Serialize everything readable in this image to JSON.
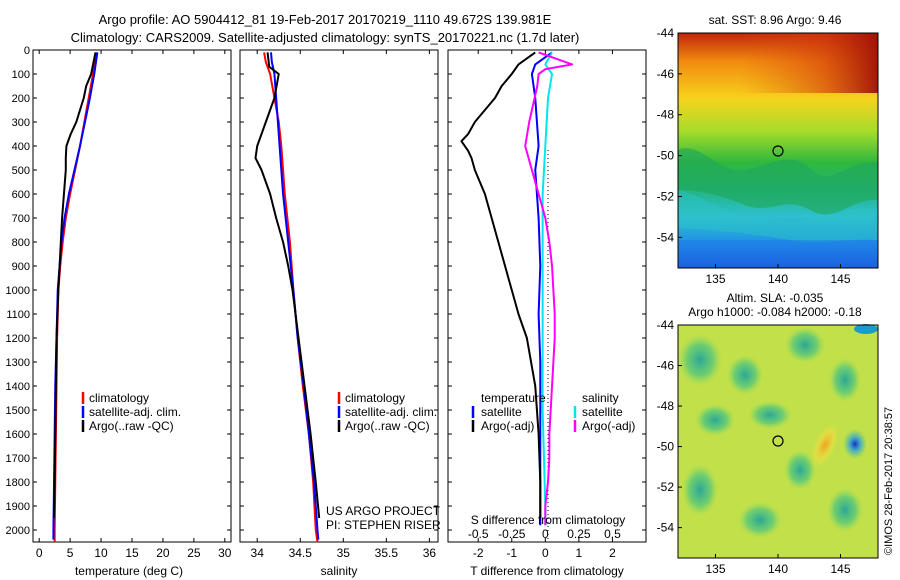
{
  "header": {
    "line1": "Argo profile: AO 5904412_81 19-Feb-2017 20170219_1110 49.672S 139.981E",
    "line2": "Climatology: CARS2009. Satellite-adjusted climatology: synTS_20170221.nc (1.7d later)"
  },
  "colors": {
    "climatology": "#ff0000",
    "satellite": "#0000ff",
    "argo": "#000000",
    "sat_salinity": "#00e5ee",
    "argo_salinity": "#ff00ff"
  },
  "project": {
    "line1": "US ARGO PROJECT",
    "line2": "PI: STEPHEN RISER"
  },
  "credit": "©IMOS 28-Feb-2017 20:38:57",
  "chart_data": [
    {
      "id": "temperature",
      "type": "line",
      "xlabel": "temperature (deg C)",
      "xlim": [
        -1,
        31
      ],
      "ylim": [
        2050,
        0
      ],
      "xticks": [
        0,
        5,
        10,
        15,
        20,
        25,
        30
      ],
      "yticks": [
        0,
        100,
        200,
        300,
        400,
        500,
        600,
        700,
        800,
        900,
        1000,
        1100,
        1200,
        1300,
        1400,
        1500,
        1600,
        1700,
        1800,
        1900,
        2000
      ],
      "legend": {
        "position": "lower-center",
        "entries": [
          "climatology",
          "satellite-adj. clim.",
          "Argo(..raw -QC)"
        ]
      },
      "series": [
        {
          "name": "climatology",
          "color": "#ff0000",
          "depth": [
            10,
            100,
            200,
            300,
            400,
            500,
            600,
            700,
            800,
            900,
            1000,
            1200,
            1400,
            1600,
            1800,
            2000,
            2050
          ],
          "values": [
            9.2,
            8.7,
            8.0,
            7.3,
            6.6,
            5.8,
            5.0,
            4.3,
            3.8,
            3.4,
            3.1,
            2.9,
            2.8,
            2.7,
            2.6,
            2.5,
            2.5
          ]
        },
        {
          "name": "satellite-adj. clim.",
          "color": "#0000ff",
          "depth": [
            10,
            100,
            200,
            300,
            400,
            500,
            600,
            700,
            800,
            900,
            1000,
            1200,
            1400,
            1600,
            1800,
            2000,
            2040
          ],
          "values": [
            9.4,
            8.9,
            8.2,
            7.4,
            6.6,
            5.7,
            4.8,
            4.1,
            3.6,
            3.3,
            3.0,
            2.8,
            2.6,
            2.5,
            2.4,
            2.3,
            2.3
          ]
        },
        {
          "name": "Argo(..raw -QC)",
          "color": "#000000",
          "depth": [
            10,
            100,
            150,
            200,
            250,
            300,
            350,
            400,
            450,
            500,
            600,
            700,
            800,
            900,
            1000,
            1200,
            1400,
            1600,
            1800,
            1950
          ],
          "values": [
            9.1,
            8.4,
            7.6,
            7.2,
            6.6,
            6.0,
            5.1,
            4.4,
            4.3,
            4.3,
            4.0,
            3.7,
            3.5,
            3.3,
            3.1,
            2.8,
            2.7,
            2.6,
            2.5,
            2.4
          ]
        }
      ]
    },
    {
      "id": "salinity",
      "type": "line",
      "xlabel": "salinity",
      "xlim": [
        33.8,
        36.1
      ],
      "ylim": [
        2050,
        0
      ],
      "xticks": [
        34,
        34.5,
        35,
        35.5,
        36
      ],
      "legend": {
        "position": "lower-center",
        "entries": [
          "climatology",
          "satellite-adj. clim.",
          "Argo(..raw -QC)"
        ]
      },
      "series": [
        {
          "name": "climatology",
          "color": "#ff0000",
          "depth": [
            10,
            50,
            100,
            200,
            300,
            400,
            500,
            600,
            700,
            800,
            900,
            1000,
            1200,
            1400,
            1600,
            1800,
            2000,
            2050
          ],
          "values": [
            34.08,
            34.1,
            34.15,
            34.2,
            34.25,
            34.28,
            34.3,
            34.32,
            34.35,
            34.38,
            34.4,
            34.42,
            34.47,
            34.53,
            34.6,
            34.65,
            34.68,
            34.7
          ]
        },
        {
          "name": "satellite-adj. clim.",
          "color": "#0000ff",
          "depth": [
            10,
            50,
            100,
            200,
            300,
            400,
            500,
            600,
            700,
            800,
            900,
            1000,
            1200,
            1400,
            1600,
            1800,
            2000,
            2040
          ],
          "values": [
            34.16,
            34.17,
            34.2,
            34.22,
            34.24,
            34.26,
            34.28,
            34.3,
            34.33,
            34.36,
            34.39,
            34.42,
            34.47,
            34.54,
            34.6,
            34.66,
            34.7,
            34.71
          ]
        },
        {
          "name": "Argo(..raw -QC)",
          "color": "#000000",
          "depth": [
            10,
            70,
            100,
            200,
            300,
            400,
            450,
            500,
            600,
            700,
            800,
            900,
            1000,
            1200,
            1400,
            1600,
            1800,
            1950
          ],
          "values": [
            34.12,
            34.14,
            34.25,
            34.2,
            34.1,
            34.0,
            33.98,
            34.05,
            34.15,
            34.22,
            34.3,
            34.36,
            34.41,
            34.48,
            34.55,
            34.62,
            34.68,
            34.72
          ]
        }
      ]
    },
    {
      "id": "differences",
      "type": "line",
      "xlabel": "T difference from climatology",
      "x2label": "S difference from climatology",
      "xlim": [
        -2.9,
        3.0
      ],
      "ylim": [
        2050,
        0
      ],
      "xticks": [
        -2,
        -1,
        0,
        1,
        2
      ],
      "x2lim": [
        -0.725,
        0.75
      ],
      "x2ticks": [
        -0.5,
        -0.25,
        0,
        0.25,
        0.5
      ],
      "legend": {
        "position": "lower-center",
        "headers": [
          "temperature",
          "salinity"
        ],
        "entries": [
          "satellite",
          "Argo(-adj)",
          "satellite",
          "Argo(-adj)"
        ]
      },
      "series": [
        {
          "name": "temperature satellite",
          "color": "#0000ff",
          "depth": [
            10,
            60,
            100,
            200,
            300,
            400,
            500,
            700,
            900,
            1100,
            1300,
            1500,
            1700,
            1900,
            1980
          ],
          "values": [
            0.2,
            -0.3,
            -0.4,
            -0.3,
            -0.25,
            -0.2,
            -0.3,
            -0.2,
            -0.15,
            -0.2,
            -0.15,
            -0.15,
            -0.15,
            -0.15,
            -0.15
          ]
        },
        {
          "name": "temperature Argo(-adj)",
          "color": "#000000",
          "depth": [
            10,
            60,
            100,
            150,
            200,
            250,
            300,
            350,
            380,
            420,
            450,
            500,
            600,
            700,
            800,
            900,
            1000,
            1100,
            1200,
            1400,
            1600,
            1800,
            1950
          ],
          "values": [
            -0.3,
            -0.8,
            -1.0,
            -1.3,
            -1.5,
            -1.8,
            -2.1,
            -2.3,
            -2.5,
            -2.3,
            -2.2,
            -2.1,
            -1.8,
            -1.6,
            -1.4,
            -1.2,
            -1.0,
            -0.8,
            -0.55,
            -0.3,
            -0.2,
            -0.15,
            -0.15
          ]
        },
        {
          "name": "salinity satellite",
          "color": "#00e5ee",
          "depth": [
            10,
            60,
            100,
            200,
            300,
            400,
            500,
            600,
            700,
            900,
            1100,
            1300,
            1500,
            1700,
            1900,
            1980
          ],
          "values": [
            0.05,
            0.0,
            0.05,
            0.02,
            0.01,
            0.0,
            -0.01,
            -0.02,
            -0.02,
            -0.02,
            -0.02,
            -0.02,
            -0.02,
            -0.01,
            0.0,
            0.0
          ]
        },
        {
          "name": "salinity Argo(-adj)",
          "color": "#ff00ff",
          "depth": [
            10,
            60,
            80,
            100,
            150,
            200,
            250,
            300,
            400,
            500,
            600,
            700,
            800,
            900,
            1000,
            1100,
            1200,
            1400,
            1500,
            1600,
            1700,
            1800,
            1900,
            1980
          ],
          "values": [
            -0.05,
            0.2,
            0.0,
            -0.05,
            -0.06,
            -0.08,
            -0.1,
            -0.12,
            -0.15,
            -0.1,
            -0.05,
            0.0,
            0.03,
            0.05,
            0.06,
            0.07,
            0.07,
            0.05,
            0.04,
            0.03,
            0.03,
            0.02,
            0.0,
            0.0
          ]
        }
      ]
    },
    {
      "id": "sst_map",
      "type": "heatmap",
      "title": "sat. SST: 8.96 Argo: 9.46",
      "xlim": [
        132,
        148
      ],
      "ylim": [
        -55.5,
        -44
      ],
      "xticks": [
        135,
        140,
        145
      ],
      "yticks": [
        -44,
        -46,
        -48,
        -50,
        -52,
        -54
      ],
      "marker": {
        "lon": 139.981,
        "lat": -49.672
      }
    },
    {
      "id": "sla_map",
      "type": "heatmap",
      "title": "Altim. SLA: -0.035",
      "subtitle": "Argo h1000: -0.084 h2000: -0.18",
      "xlim": [
        132,
        148
      ],
      "ylim": [
        -55.5,
        -44
      ],
      "xticks": [
        135,
        140,
        145
      ],
      "yticks": [
        -44,
        -46,
        -48,
        -50,
        -52,
        -54
      ],
      "marker": {
        "lon": 139.981,
        "lat": -49.672
      }
    }
  ]
}
